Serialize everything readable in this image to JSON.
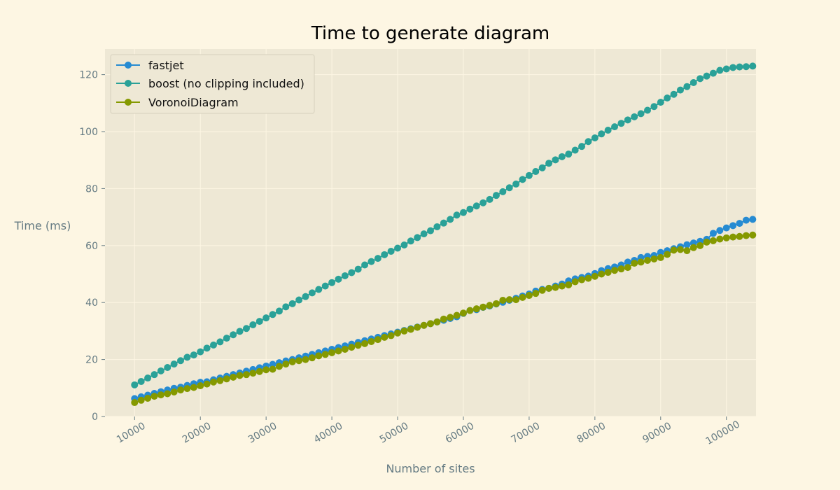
{
  "chart_data": {
    "type": "line",
    "title": "Time to generate diagram",
    "xlabel": "Number of sites",
    "ylabel": "Time (ms)",
    "x_start": 10000,
    "x_step": 1000,
    "xlim": [
      5500,
      104500
    ],
    "ylim": [
      0,
      129
    ],
    "x_ticks": [
      10000,
      20000,
      30000,
      40000,
      50000,
      60000,
      70000,
      80000,
      90000,
      100000
    ],
    "y_ticks": [
      0,
      20,
      40,
      60,
      80,
      100,
      120
    ],
    "grid": true,
    "legend_position": "top-left",
    "series": [
      {
        "name": "fastjet",
        "color": "#268bd2",
        "values": [
          6.3,
          6.9,
          7.5,
          8.1,
          8.7,
          9.3,
          9.9,
          10.3,
          10.9,
          11.5,
          12.0,
          12.2,
          12.9,
          13.5,
          14.1,
          14.7,
          15.3,
          15.9,
          16.5,
          17.1,
          17.7,
          18.3,
          18.9,
          19.5,
          20.0,
          20.6,
          21.2,
          21.8,
          22.4,
          23.0,
          23.6,
          24.2,
          24.8,
          25.4,
          26.0,
          26.6,
          27.2,
          27.8,
          28.4,
          29.0,
          29.6,
          30.2,
          30.8,
          31.4,
          32.0,
          32.6,
          33.2,
          33.8,
          34.4,
          35.0,
          36.2,
          37.2,
          37.5,
          38.3,
          38.8,
          39.5,
          40.1,
          40.8,
          41.5,
          42.3,
          43.0,
          44.0,
          44.6,
          45.0,
          45.8,
          46.5,
          47.6,
          48.3,
          48.8,
          49.3,
          50.2,
          51.2,
          51.9,
          52.5,
          53.2,
          54.2,
          54.8,
          55.8,
          56.2,
          56.5,
          57.6,
          58.2,
          58.9,
          59.6,
          60.3,
          60.9,
          61.5,
          62.2,
          64.3,
          65.3,
          66.2,
          67.0,
          67.8,
          68.9,
          69.2
        ]
      },
      {
        "name": "boost (no clipping included)",
        "color": "#2aa198",
        "values": [
          11.1,
          12.3,
          13.5,
          14.7,
          16.0,
          17.2,
          18.4,
          19.6,
          20.8,
          21.6,
          22.7,
          24.0,
          25.1,
          26.2,
          27.5,
          28.7,
          29.9,
          30.9,
          32.2,
          33.4,
          34.6,
          35.8,
          37.0,
          38.5,
          39.6,
          40.9,
          42.1,
          43.4,
          44.6,
          45.8,
          47.0,
          48.2,
          49.4,
          50.5,
          51.7,
          53.2,
          54.4,
          55.5,
          56.8,
          58.0,
          59.1,
          60.2,
          61.6,
          62.8,
          64.1,
          65.2,
          66.6,
          67.9,
          69.2,
          70.7,
          71.6,
          72.8,
          73.9,
          75.0,
          76.2,
          77.6,
          78.9,
          80.3,
          81.6,
          83.2,
          84.6,
          86.0,
          87.3,
          88.9,
          90.1,
          91.2,
          92.1,
          93.5,
          94.8,
          96.5,
          97.8,
          99.2,
          100.5,
          101.7,
          102.9,
          104.1,
          105.2,
          106.3,
          107.5,
          108.8,
          110.3,
          111.8,
          113.1,
          114.6,
          115.8,
          117.2,
          118.6,
          119.5,
          120.5,
          121.5,
          122.0,
          122.5,
          122.7,
          122.8,
          123.0
        ]
      },
      {
        "name": "VoronoiDiagram",
        "color": "#859900",
        "values": [
          4.9,
          5.7,
          6.4,
          7.1,
          7.6,
          8.0,
          8.6,
          9.3,
          9.8,
          10.2,
          10.8,
          11.4,
          12.1,
          12.6,
          13.2,
          13.8,
          14.4,
          14.7,
          15.2,
          15.8,
          16.4,
          16.6,
          17.6,
          18.4,
          19.2,
          19.6,
          20.0,
          20.6,
          21.3,
          21.8,
          22.4,
          23.0,
          23.6,
          24.3,
          25.0,
          25.6,
          26.3,
          27.0,
          27.8,
          28.4,
          29.3,
          30.0,
          30.6,
          31.3,
          32.0,
          32.6,
          33.2,
          34.2,
          34.8,
          35.5,
          36.3,
          37.2,
          37.8,
          38.4,
          39.0,
          39.6,
          40.8,
          41.0,
          41.0,
          41.8,
          42.5,
          43.2,
          44.3,
          45.0,
          45.3,
          45.8,
          46.2,
          47.3,
          48.0,
          48.5,
          49.2,
          50.0,
          50.6,
          51.3,
          51.8,
          52.3,
          53.8,
          54.2,
          54.8,
          55.3,
          55.8,
          56.9,
          58.4,
          58.6,
          58.2,
          59.3,
          60.0,
          61.2,
          61.7,
          62.3,
          62.7,
          63.0,
          63.2,
          63.5,
          63.7
        ]
      }
    ]
  }
}
